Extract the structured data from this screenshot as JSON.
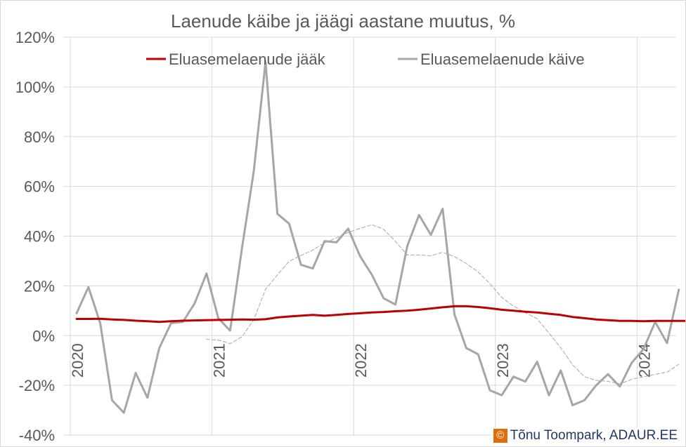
{
  "chart_data": {
    "type": "line",
    "title": "Laenude käibe ja jäägi aastane muutus, %",
    "ylim": [
      -40,
      120
    ],
    "y_ticks": [
      -40,
      -20,
      0,
      20,
      40,
      60,
      80,
      100,
      120
    ],
    "y_tick_labels": [
      "-40%",
      "-20%",
      "0%",
      "20%",
      "40%",
      "60%",
      "80%",
      "100%",
      "120%"
    ],
    "x_ticks": [
      2020,
      2021,
      2022,
      2023,
      2024
    ],
    "x_tick_labels": [
      "2020",
      "2021",
      "2022",
      "2023",
      "2024"
    ],
    "grid": true,
    "legend_position": "top",
    "series": [
      {
        "name": "Eluasemelaenude jääk",
        "color": "#c00000",
        "values": [
          6.7,
          6.7,
          6.8,
          6.5,
          6.3,
          6.0,
          5.8,
          5.5,
          5.8,
          6.0,
          6.1,
          6.2,
          6.3,
          6.4,
          6.5,
          6.4,
          6.6,
          7.3,
          7.7,
          8.0,
          8.3,
          8.0,
          8.3,
          8.7,
          9.0,
          9.3,
          9.5,
          9.8,
          10.0,
          10.4,
          10.9,
          11.4,
          11.8,
          11.8,
          11.5,
          11.0,
          10.4,
          10.0,
          9.6,
          9.3,
          8.8,
          8.3,
          7.5,
          7.0,
          6.5,
          6.2,
          5.9,
          5.9,
          5.8,
          5.9,
          5.9,
          5.9,
          5.9
        ]
      },
      {
        "name": "Eluasemelaenude käive",
        "color": "#a6a6a6",
        "values": [
          9,
          19.5,
          5,
          -26,
          -31,
          -15,
          -25,
          -5,
          5,
          5.5,
          13,
          25,
          7,
          2,
          35,
          66,
          110,
          49,
          45,
          28.5,
          27,
          38,
          37.5,
          43,
          32,
          24.5,
          15,
          12.5,
          36,
          48.5,
          40.5,
          51,
          8.5,
          -5,
          -7.5,
          -22,
          -24,
          -16.5,
          -18.5,
          -10.5,
          -24,
          -14,
          -28,
          -26,
          -20,
          -15.5,
          -20.5,
          -11,
          -5.5,
          5.5,
          -3,
          18.5
        ]
      },
      {
        "name": "",
        "color": "#a6a6a6",
        "dashed": true,
        "values": [
          null,
          null,
          null,
          null,
          null,
          null,
          null,
          null,
          null,
          null,
          null,
          -1.5,
          -1.8,
          -3.2,
          -0.5,
          6.3,
          18.6,
          24.4,
          29.9,
          32.2,
          34.4,
          37.3,
          39.3,
          41.5,
          43.1,
          44.6,
          42.8,
          37.9,
          32.4,
          32.4,
          32.1,
          33.5,
          31.8,
          29.0,
          25.6,
          20.9,
          15.4,
          11.9,
          9.2,
          6.8,
          1.0,
          -4.9,
          -11.7,
          -16.5,
          -18.0,
          -18.4,
          -19.4,
          -17.6,
          -16.6,
          -15.6,
          -14.7,
          -11.5
        ]
      }
    ]
  },
  "credit": {
    "symbol": "©",
    "text": "Tõnu Toompark, ADAUR.EE",
    "accent_color": "#e36c0a"
  }
}
